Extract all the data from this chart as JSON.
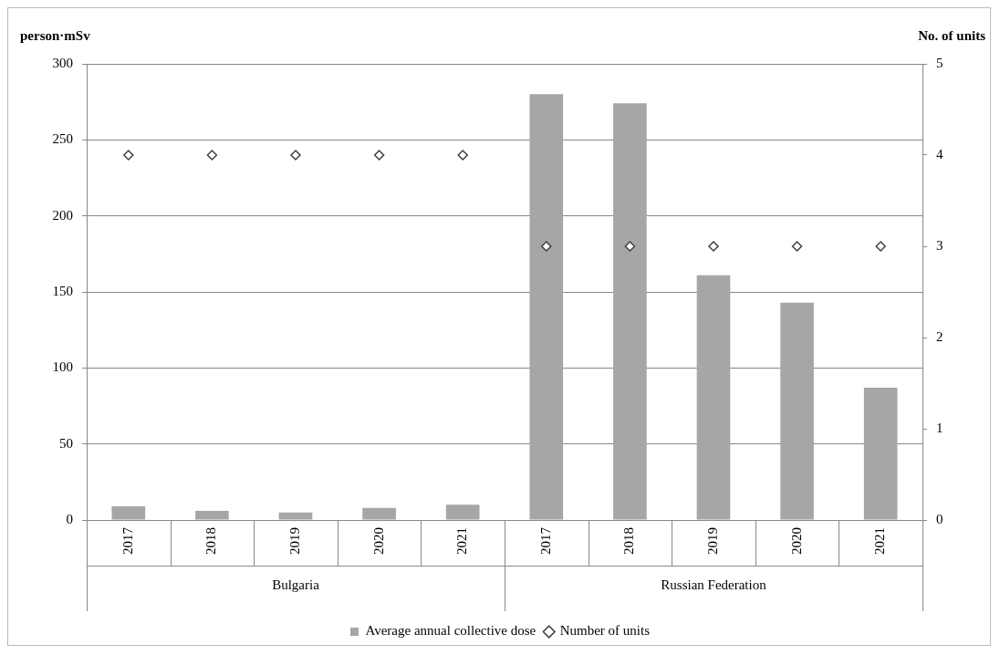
{
  "chart_data": {
    "type": "bar",
    "ylabel": "person·mSv",
    "y2label": "No. of units",
    "categories": [
      "2017",
      "2018",
      "2019",
      "2020",
      "2021",
      "2017",
      "2018",
      "2019",
      "2020",
      "2021"
    ],
    "series": [
      {
        "name": "Average annual collective dose",
        "color": "#a6a6a6",
        "values": [
          9,
          6,
          5,
          8,
          10,
          280,
          274,
          161,
          143,
          87
        ]
      },
      {
        "name": "Number of units",
        "type": "scatter",
        "axis": "y2",
        "marker": "diamond",
        "color": "#404040",
        "values": [
          4,
          4,
          4,
          4,
          4,
          3,
          3,
          3,
          3,
          3
        ]
      }
    ],
    "ylim": [
      0,
      300
    ],
    "yticks": [
      0,
      50,
      100,
      150,
      200,
      250,
      300
    ],
    "y2lim": [
      0,
      5
    ],
    "y2ticks": [
      0,
      1,
      2,
      3,
      4,
      5
    ],
    "annotations": [
      "Bulgaria",
      "Russian Federation"
    ],
    "grid": "y",
    "legend": "bottom"
  }
}
